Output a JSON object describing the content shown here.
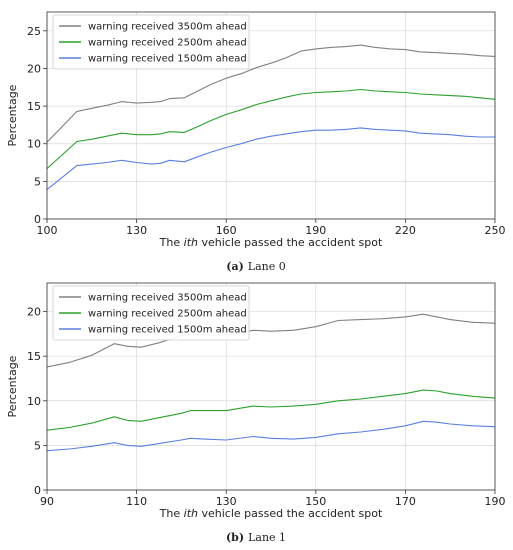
{
  "chart_data": [
    {
      "type": "line",
      "caption_tag": "(a)",
      "caption_text": "Lane 0",
      "xlabel_pre": "The ",
      "xlabel_italic": "ith",
      "xlabel_post": " vehicle passed the accident spot",
      "ylabel": "Percentage",
      "xlim": [
        100,
        250
      ],
      "ylim": [
        0,
        27.5
      ],
      "xticks": [
        100,
        130,
        160,
        190,
        220,
        250
      ],
      "yticks": [
        0,
        5,
        10,
        15,
        20,
        25
      ],
      "grid": true,
      "legend_position": "top-left",
      "series": [
        {
          "name": "warning received 3500m ahead",
          "color": "#808080",
          "points": [
            [
              100,
              10.2
            ],
            [
              110,
              14.3
            ],
            [
              115,
              14.7
            ],
            [
              120,
              15.1
            ],
            [
              125,
              15.6
            ],
            [
              130,
              15.4
            ],
            [
              135,
              15.5
            ],
            [
              138,
              15.6
            ],
            [
              141,
              16.0
            ],
            [
              146,
              16.1
            ],
            [
              150,
              16.9
            ],
            [
              155,
              17.9
            ],
            [
              160,
              18.7
            ],
            [
              165,
              19.3
            ],
            [
              170,
              20.1
            ],
            [
              175,
              20.7
            ],
            [
              180,
              21.4
            ],
            [
              185,
              22.3
            ],
            [
              190,
              22.6
            ],
            [
              195,
              22.8
            ],
            [
              200,
              22.9
            ],
            [
              205,
              23.1
            ],
            [
              210,
              22.8
            ],
            [
              215,
              22.6
            ],
            [
              220,
              22.5
            ],
            [
              225,
              22.2
            ],
            [
              230,
              22.1
            ],
            [
              235,
              22.0
            ],
            [
              240,
              21.9
            ],
            [
              245,
              21.7
            ],
            [
              250,
              21.6
            ]
          ]
        },
        {
          "name": "warning received 2500m ahead",
          "color": "#2ca02c",
          "points": [
            [
              100,
              6.7
            ],
            [
              110,
              10.3
            ],
            [
              115,
              10.6
            ],
            [
              120,
              11.0
            ],
            [
              125,
              11.4
            ],
            [
              130,
              11.2
            ],
            [
              135,
              11.2
            ],
            [
              138,
              11.3
            ],
            [
              141,
              11.6
            ],
            [
              146,
              11.5
            ],
            [
              150,
              12.2
            ],
            [
              155,
              13.1
            ],
            [
              160,
              13.9
            ],
            [
              165,
              14.5
            ],
            [
              170,
              15.2
            ],
            [
              175,
              15.7
            ],
            [
              180,
              16.2
            ],
            [
              185,
              16.6
            ],
            [
              190,
              16.8
            ],
            [
              195,
              16.9
            ],
            [
              200,
              17.0
            ],
            [
              205,
              17.2
            ],
            [
              210,
              17.0
            ],
            [
              215,
              16.9
            ],
            [
              220,
              16.8
            ],
            [
              225,
              16.6
            ],
            [
              230,
              16.5
            ],
            [
              235,
              16.4
            ],
            [
              240,
              16.3
            ],
            [
              245,
              16.1
            ],
            [
              250,
              15.9
            ]
          ]
        },
        {
          "name": "warning received 1500m ahead",
          "color": "#5b7fde",
          "points": [
            [
              100,
              3.9
            ],
            [
              110,
              7.1
            ],
            [
              115,
              7.3
            ],
            [
              120,
              7.5
            ],
            [
              125,
              7.8
            ],
            [
              130,
              7.5
            ],
            [
              135,
              7.3
            ],
            [
              138,
              7.4
            ],
            [
              141,
              7.8
            ],
            [
              146,
              7.6
            ],
            [
              150,
              8.2
            ],
            [
              155,
              8.9
            ],
            [
              160,
              9.5
            ],
            [
              165,
              10.0
            ],
            [
              170,
              10.6
            ],
            [
              175,
              11.0
            ],
            [
              180,
              11.3
            ],
            [
              185,
              11.6
            ],
            [
              190,
              11.8
            ],
            [
              195,
              11.8
            ],
            [
              200,
              11.9
            ],
            [
              205,
              12.1
            ],
            [
              210,
              11.9
            ],
            [
              215,
              11.8
            ],
            [
              220,
              11.7
            ],
            [
              225,
              11.4
            ],
            [
              230,
              11.3
            ],
            [
              235,
              11.2
            ],
            [
              240,
              11.0
            ],
            [
              245,
              10.9
            ],
            [
              250,
              10.9
            ]
          ]
        }
      ]
    },
    {
      "type": "line",
      "caption_tag": "(b)",
      "caption_text": "Lane 1",
      "xlabel_pre": "The ",
      "xlabel_italic": "ith",
      "xlabel_post": " vehicle passed the accident spot",
      "ylabel": "Percentage",
      "xlim": [
        90,
        190
      ],
      "ylim": [
        0,
        23.2
      ],
      "xticks": [
        90,
        110,
        130,
        150,
        170,
        190
      ],
      "yticks": [
        0,
        5,
        10,
        15,
        20
      ],
      "grid": true,
      "legend_position": "top-left",
      "series": [
        {
          "name": "warning received 3500m ahead",
          "color": "#808080",
          "points": [
            [
              90,
              13.8
            ],
            [
              95,
              14.3
            ],
            [
              100,
              15.1
            ],
            [
              105,
              16.4
            ],
            [
              108,
              16.1
            ],
            [
              111,
              16.0
            ],
            [
              115,
              16.5
            ],
            [
              120,
              17.3
            ],
            [
              122,
              17.5
            ],
            [
              125,
              17.4
            ],
            [
              130,
              17.4
            ],
            [
              136,
              17.9
            ],
            [
              140,
              17.8
            ],
            [
              145,
              17.9
            ],
            [
              150,
              18.3
            ],
            [
              155,
              19.0
            ],
            [
              160,
              19.1
            ],
            [
              165,
              19.2
            ],
            [
              170,
              19.4
            ],
            [
              174,
              19.7
            ],
            [
              177,
              19.4
            ],
            [
              180,
              19.1
            ],
            [
              185,
              18.8
            ],
            [
              190,
              18.7
            ]
          ]
        },
        {
          "name": "warning received 2500m ahead",
          "color": "#2ca02c",
          "points": [
            [
              90,
              6.7
            ],
            [
              95,
              7.0
            ],
            [
              100,
              7.5
            ],
            [
              105,
              8.2
            ],
            [
              108,
              7.8
            ],
            [
              111,
              7.7
            ],
            [
              115,
              8.1
            ],
            [
              120,
              8.6
            ],
            [
              122,
              8.9
            ],
            [
              125,
              8.9
            ],
            [
              130,
              8.9
            ],
            [
              136,
              9.4
            ],
            [
              140,
              9.3
            ],
            [
              145,
              9.4
            ],
            [
              150,
              9.6
            ],
            [
              155,
              10.0
            ],
            [
              160,
              10.2
            ],
            [
              165,
              10.5
            ],
            [
              170,
              10.8
            ],
            [
              174,
              11.2
            ],
            [
              177,
              11.1
            ],
            [
              180,
              10.8
            ],
            [
              185,
              10.5
            ],
            [
              190,
              10.3
            ]
          ]
        },
        {
          "name": "warning received 1500m ahead",
          "color": "#5b7fde",
          "points": [
            [
              90,
              4.4
            ],
            [
              95,
              4.6
            ],
            [
              100,
              4.9
            ],
            [
              105,
              5.3
            ],
            [
              108,
              5.0
            ],
            [
              111,
              4.9
            ],
            [
              115,
              5.2
            ],
            [
              120,
              5.6
            ],
            [
              122,
              5.8
            ],
            [
              125,
              5.7
            ],
            [
              130,
              5.6
            ],
            [
              136,
              6.0
            ],
            [
              140,
              5.8
            ],
            [
              145,
              5.7
            ],
            [
              150,
              5.9
            ],
            [
              155,
              6.3
            ],
            [
              160,
              6.5
            ],
            [
              165,
              6.8
            ],
            [
              170,
              7.2
            ],
            [
              174,
              7.7
            ],
            [
              177,
              7.6
            ],
            [
              180,
              7.4
            ],
            [
              185,
              7.2
            ],
            [
              190,
              7.1
            ]
          ]
        }
      ]
    }
  ]
}
